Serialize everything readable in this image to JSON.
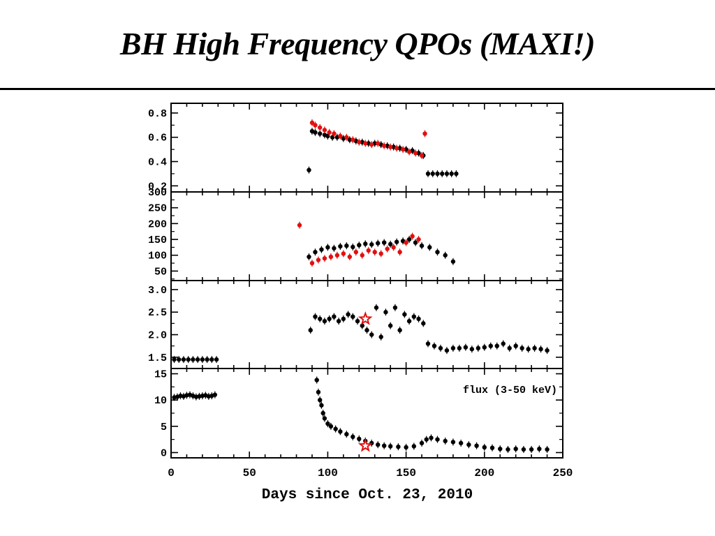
{
  "slide": {
    "title": "BH High Frequency QPOs (MAXI!)"
  },
  "chart_data": {
    "type": "scatter",
    "xlabel": "Days since Oct. 23, 2010",
    "xlim": [
      0,
      250
    ],
    "x_ticks": [
      0,
      50,
      100,
      150,
      200,
      250
    ],
    "colors": {
      "series_black": "#000000",
      "series_red": "#e01010"
    },
    "panels": [
      {
        "id": "top",
        "ylim": [
          0.15,
          0.88
        ],
        "y_ticks": [
          0.2,
          0.4,
          0.6,
          0.8
        ],
        "y_tick_labels": [
          "0.2",
          "0.4",
          "0.6",
          "0.8"
        ],
        "annotation": "",
        "series": [
          {
            "color": "black",
            "x": [
              88,
              90,
              92,
              95,
              98,
              100,
              103,
              106,
              110,
              114,
              118,
              122,
              126,
              130,
              134,
              138,
              142,
              146,
              150,
              154,
              158,
              161
            ],
            "y": [
              0.33,
              0.65,
              0.64,
              0.63,
              0.62,
              0.61,
              0.6,
              0.6,
              0.59,
              0.58,
              0.57,
              0.56,
              0.55,
              0.55,
              0.54,
              0.53,
              0.52,
              0.51,
              0.5,
              0.49,
              0.47,
              0.45
            ]
          },
          {
            "color": "black",
            "x": [
              164,
              167,
              170,
              173,
              176,
              179,
              182
            ],
            "y": [
              0.3,
              0.3,
              0.3,
              0.3,
              0.3,
              0.3,
              0.3
            ]
          },
          {
            "color": "red",
            "x": [
              90,
              92,
              95,
              98,
              101,
              104,
              108,
              112,
              116,
              120,
              124,
              128,
              132,
              136,
              140,
              144,
              148,
              152,
              156,
              160
            ],
            "y": [
              0.72,
              0.7,
              0.68,
              0.66,
              0.64,
              0.63,
              0.61,
              0.6,
              0.58,
              0.56,
              0.55,
              0.54,
              0.55,
              0.53,
              0.52,
              0.51,
              0.5,
              0.48,
              0.47,
              0.45
            ]
          },
          {
            "color": "red",
            "x": [
              162
            ],
            "y": [
              0.63
            ]
          }
        ]
      },
      {
        "id": "second",
        "ylim": [
          20,
          300
        ],
        "y_ticks": [
          50,
          100,
          150,
          200,
          250,
          300
        ],
        "y_tick_labels": [
          "50",
          "100",
          "150",
          "200",
          "250",
          "300"
        ],
        "annotation": "",
        "series": [
          {
            "color": "black",
            "x": [
              88,
              92,
              96,
              100,
              104,
              108,
              112,
              116,
              120,
              124,
              128,
              132,
              136,
              140,
              144,
              148,
              152,
              156,
              160,
              165,
              170,
              175,
              180
            ],
            "y": [
              95,
              110,
              118,
              125,
              122,
              128,
              130,
              126,
              132,
              136,
              134,
              138,
              140,
              135,
              142,
              145,
              150,
              140,
              130,
              125,
              110,
              100,
              80
            ]
          },
          {
            "color": "red",
            "x": [
              82,
              90,
              94,
              98,
              102,
              106,
              110,
              114,
              118,
              122,
              126,
              130,
              134,
              138,
              142,
              146,
              150,
              154,
              158
            ],
            "y": [
              195,
              75,
              85,
              90,
              95,
              100,
              105,
              95,
              110,
              100,
              115,
              110,
              105,
              120,
              125,
              110,
              140,
              160,
              150
            ]
          }
        ]
      },
      {
        "id": "third",
        "ylim": [
          1.25,
          3.2
        ],
        "y_ticks": [
          1.5,
          2.0,
          2.5,
          3.0
        ],
        "y_tick_labels": [
          "1.5",
          "2.0",
          "2.5",
          "3.0"
        ],
        "annotation": "",
        "series": [
          {
            "color": "black",
            "x": [
              2,
              5,
              8,
              11,
              14,
              17,
              20,
              23,
              26,
              29
            ],
            "y": [
              1.45,
              1.45,
              1.45,
              1.45,
              1.45,
              1.45,
              1.45,
              1.45,
              1.45,
              1.45
            ]
          },
          {
            "color": "black",
            "x": [
              89,
              92,
              95,
              98,
              101,
              104,
              107,
              110,
              113,
              116,
              119,
              122,
              125,
              128,
              131,
              134,
              137,
              140,
              143,
              146,
              149,
              152,
              155,
              158,
              161
            ],
            "y": [
              2.1,
              2.4,
              2.35,
              2.3,
              2.35,
              2.4,
              2.3,
              2.35,
              2.45,
              2.4,
              2.3,
              2.2,
              2.1,
              2.0,
              2.6,
              1.95,
              2.5,
              2.2,
              2.6,
              2.1,
              2.45,
              2.3,
              2.4,
              2.35,
              2.25
            ]
          },
          {
            "color": "black",
            "x": [
              164,
              168,
              172,
              176,
              180,
              184,
              188,
              192,
              196,
              200,
              204,
              208,
              212,
              216,
              220,
              224,
              228,
              232,
              236,
              240
            ],
            "y": [
              1.8,
              1.75,
              1.7,
              1.65,
              1.7,
              1.7,
              1.72,
              1.68,
              1.7,
              1.72,
              1.75,
              1.75,
              1.8,
              1.7,
              1.75,
              1.7,
              1.68,
              1.7,
              1.68,
              1.65
            ]
          },
          {
            "color": "red-star",
            "x": [
              124
            ],
            "y": [
              2.35
            ]
          }
        ]
      },
      {
        "id": "bottom",
        "ylim": [
          -1,
          16
        ],
        "y_ticks": [
          0,
          5,
          10,
          15
        ],
        "y_tick_labels": [
          "0",
          "5",
          "10",
          "15"
        ],
        "annotation": "flux (3-50 keV)",
        "series": [
          {
            "color": "black",
            "x": [
              2,
              4,
              6,
              8,
              10,
              12,
              14,
              16,
              18,
              20,
              22,
              24,
              26,
              28
            ],
            "y": [
              10.5,
              10.6,
              10.8,
              10.7,
              10.9,
              11.0,
              10.8,
              10.6,
              10.7,
              10.8,
              10.9,
              10.7,
              10.8,
              11.0
            ]
          },
          {
            "color": "black",
            "x": [
              93,
              94,
              95,
              96,
              97,
              98,
              100,
              102,
              105,
              108,
              112,
              116,
              120,
              124,
              128,
              132,
              136,
              140,
              145,
              150,
              155,
              160,
              163,
              166,
              170,
              175,
              180,
              185,
              190,
              195,
              200,
              205,
              210,
              215,
              220,
              225,
              230,
              235,
              240
            ],
            "y": [
              13.8,
              11.5,
              10.0,
              9.0,
              7.5,
              6.5,
              5.5,
              5.0,
              4.5,
              4.0,
              3.5,
              3.0,
              2.6,
              2.2,
              1.8,
              1.5,
              1.3,
              1.2,
              1.1,
              1.0,
              1.2,
              1.8,
              2.5,
              2.8,
              2.5,
              2.2,
              2.0,
              1.8,
              1.5,
              1.3,
              1.0,
              0.9,
              0.7,
              0.6,
              0.7,
              0.6,
              0.6,
              0.7,
              0.6
            ]
          },
          {
            "color": "red-star",
            "x": [
              124
            ],
            "y": [
              1.3
            ]
          }
        ]
      }
    ]
  }
}
